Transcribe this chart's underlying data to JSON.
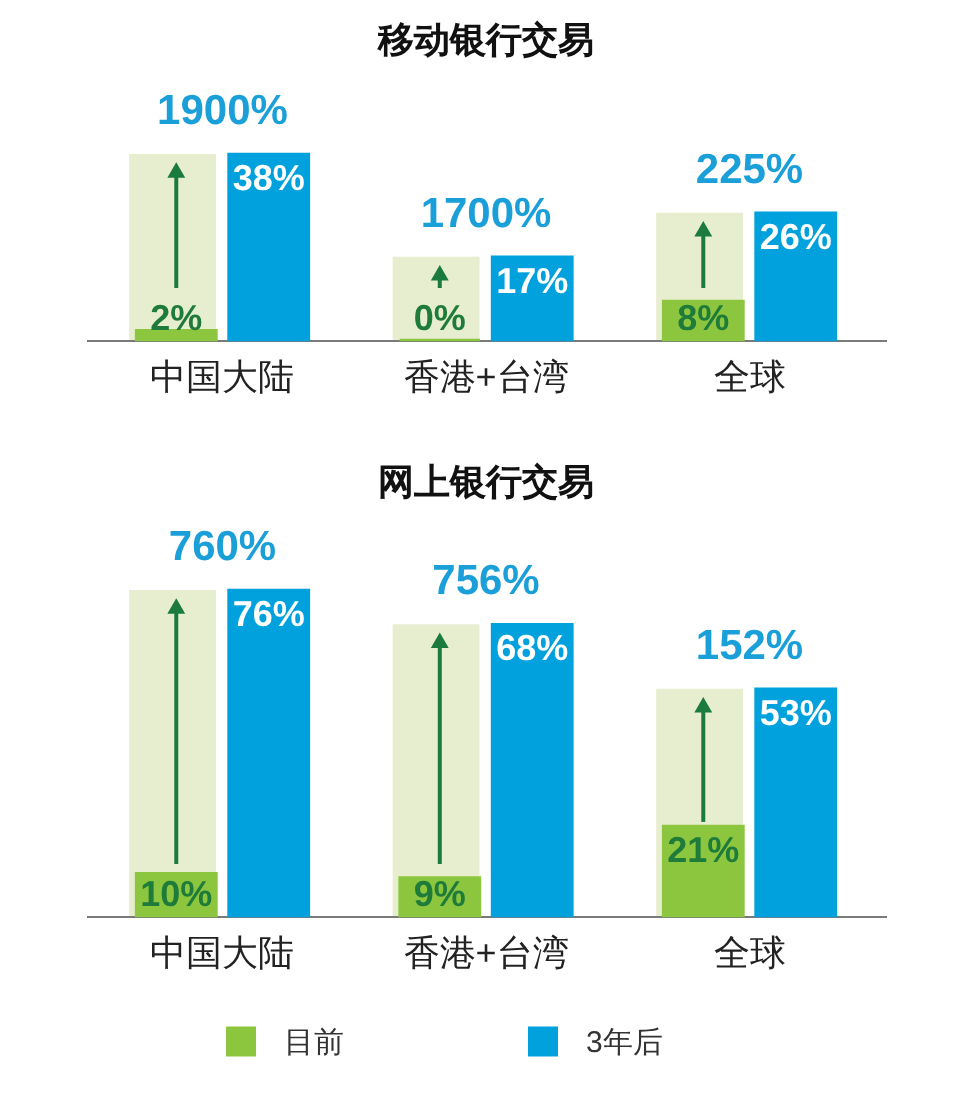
{
  "chart_data": [
    {
      "type": "bar",
      "title": "移动银行交易",
      "categories": [
        "中国大陆",
        "香港+台湾",
        "全球"
      ],
      "series": [
        {
          "color": "#e7eed0",
          "values": [
            38,
            17,
            26
          ]
        },
        {
          "name": "目前",
          "color": "#8cc63f",
          "values": [
            2,
            0,
            8
          ],
          "value_labels": [
            "2%",
            "0%",
            "8%"
          ]
        },
        {
          "name": "3年后",
          "color": "#00a1dc",
          "values": [
            38,
            17,
            26
          ],
          "value_labels": [
            "38%",
            "17%",
            "26%"
          ]
        }
      ],
      "annotations": [
        {
          "text": "1900%",
          "x": "中国大陆",
          "y": 38
        },
        {
          "text": "1700%",
          "x": "香港+台湾",
          "y": 17
        },
        {
          "text": "225%",
          "x": "全球",
          "y": 26
        }
      ],
      "legend": "bottom"
    },
    {
      "type": "bar",
      "title": "网上银行交易",
      "categories": [
        "中国大陆",
        "香港+台湾",
        "全球"
      ],
      "series": [
        {
          "color": "#e7eed0",
          "values": [
            76,
            68,
            53
          ]
        },
        {
          "name": "目前",
          "color": "#8cc63f",
          "values": [
            10,
            9,
            21
          ],
          "value_labels": [
            "10%",
            "9%",
            "21%"
          ]
        },
        {
          "name": "3年后",
          "color": "#00a1dc",
          "values": [
            76,
            68,
            53
          ],
          "value_labels": [
            "76%",
            "68%",
            "53%"
          ]
        }
      ],
      "annotations": [
        {
          "text": "760%",
          "x": "中国大陆",
          "y": 76
        },
        {
          "text": "756%",
          "x": "香港+台湾",
          "y": 68
        },
        {
          "text": "152%",
          "x": "全球",
          "y": 53
        }
      ],
      "legend": "bottom"
    }
  ]
}
